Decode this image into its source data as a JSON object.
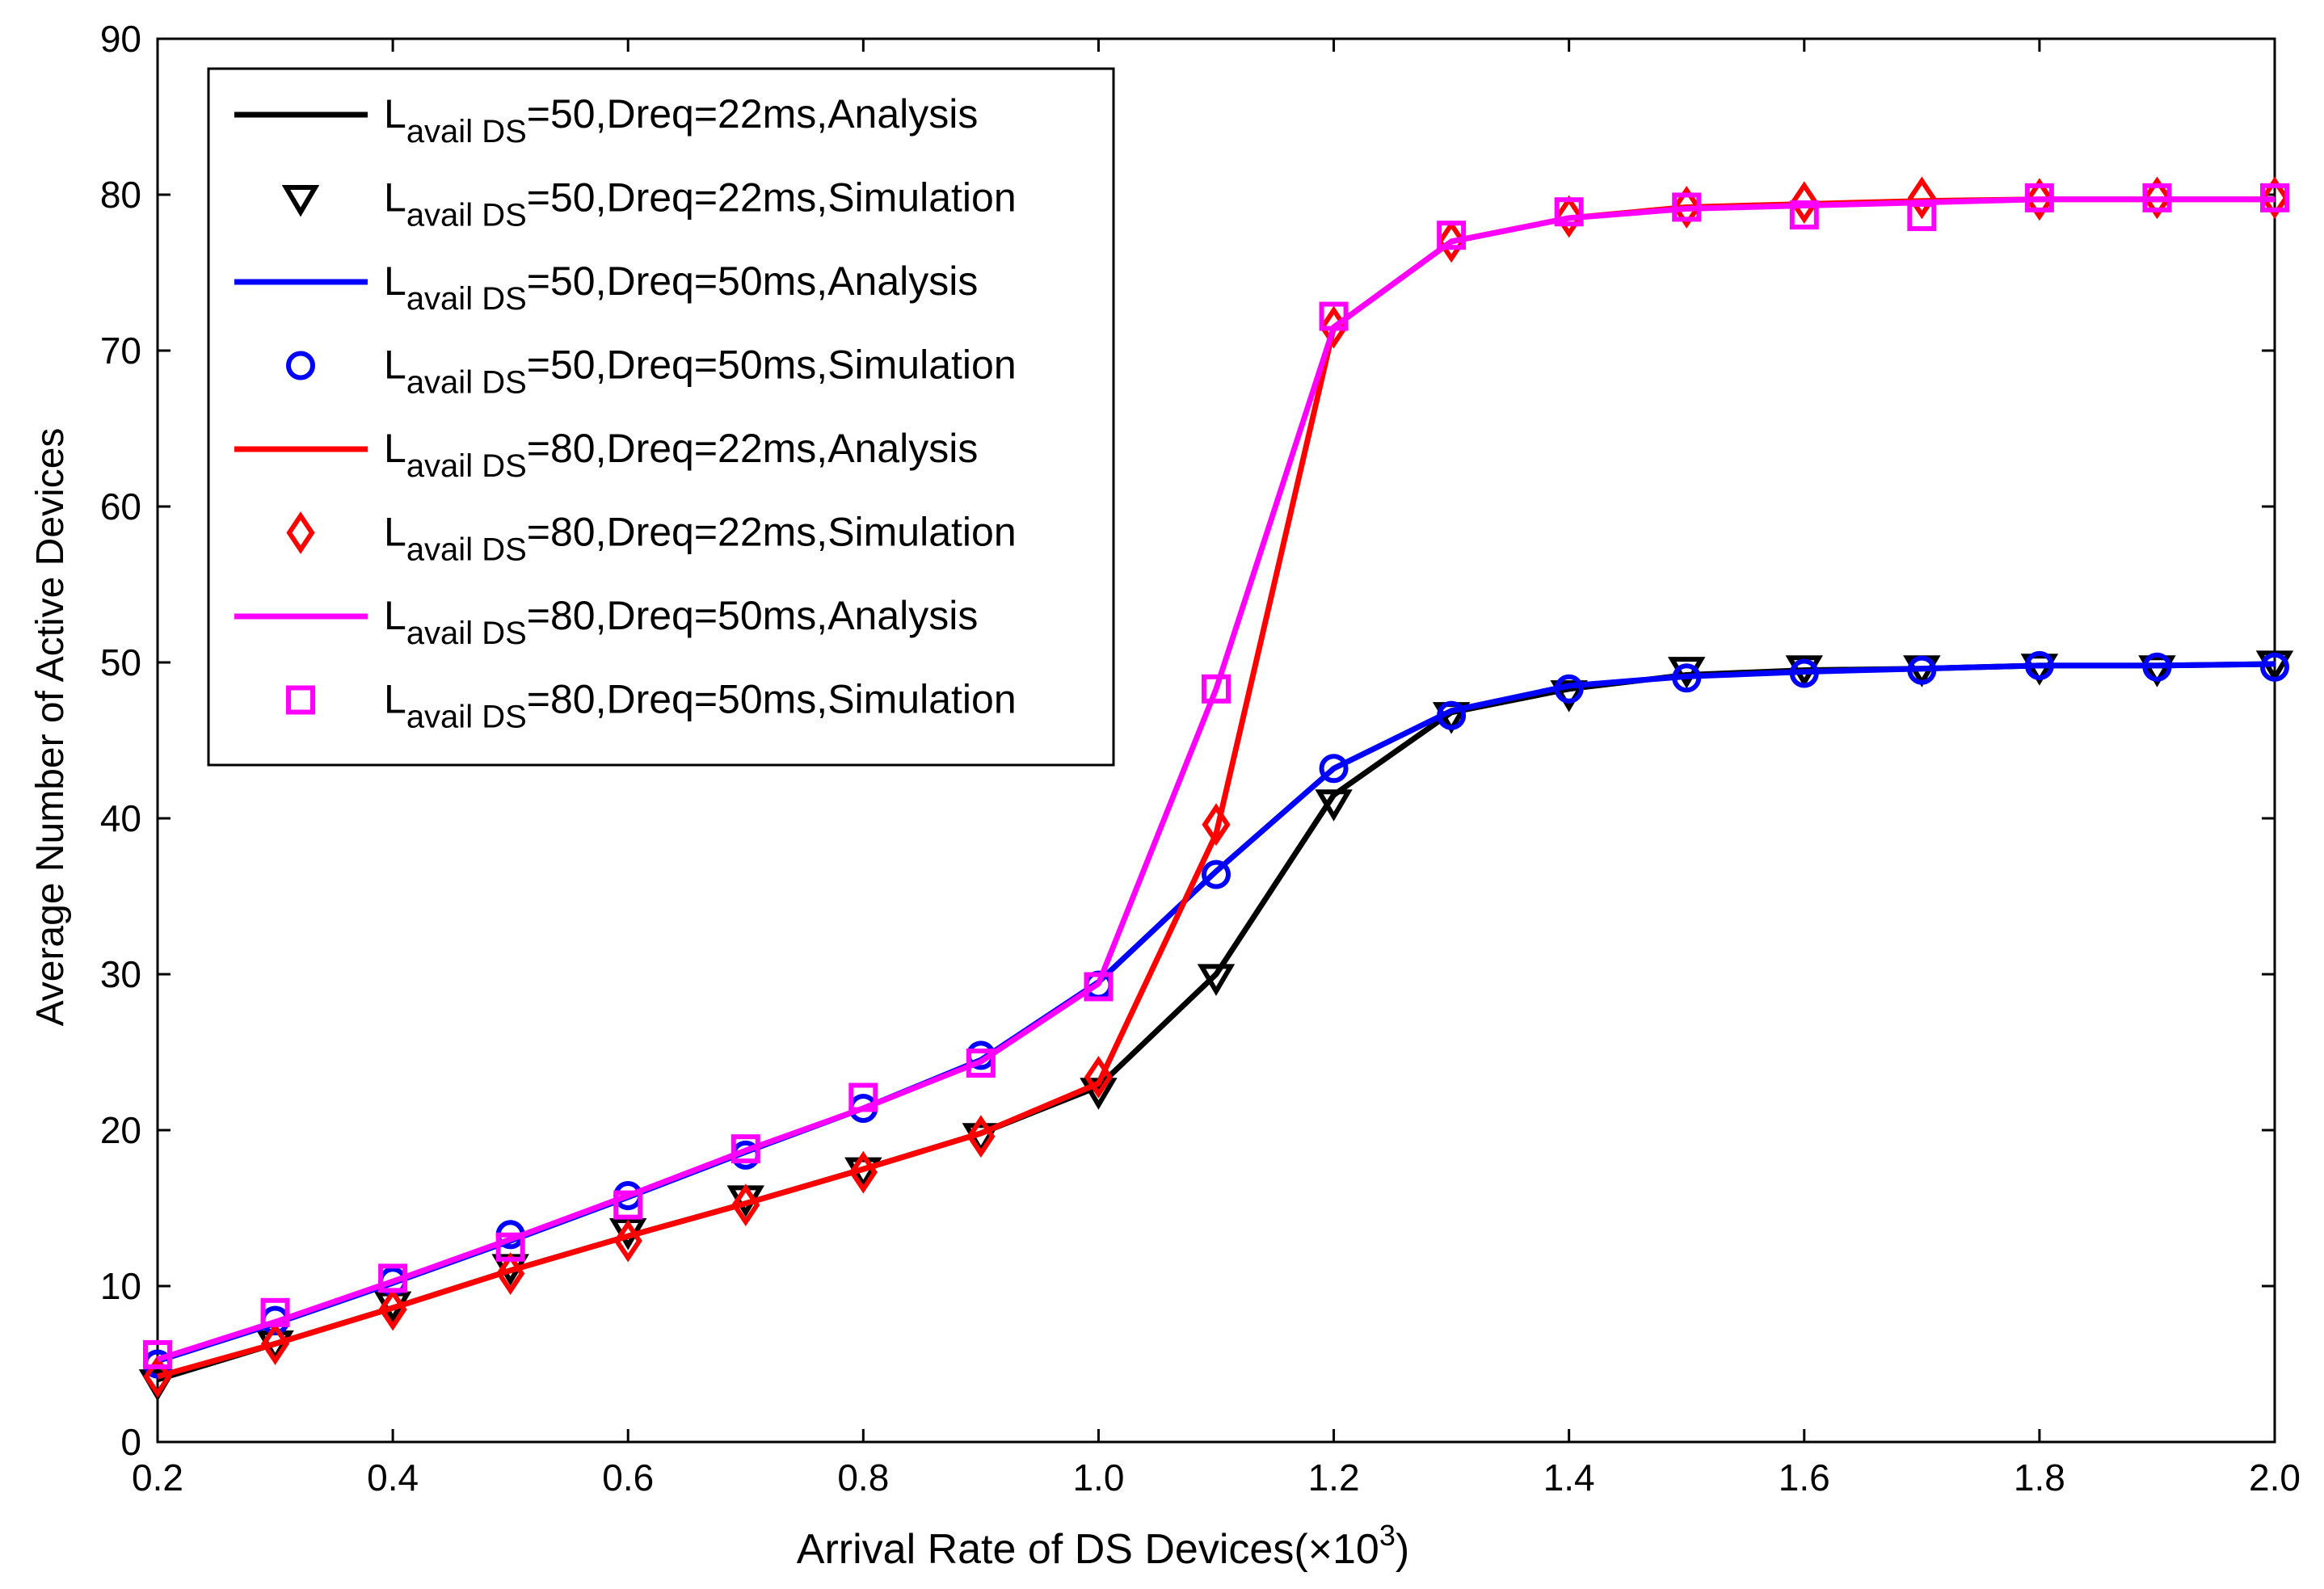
{
  "chart_data": {
    "type": "line",
    "title": "",
    "xlabel": "Arrival Rate of DS Devices(×10",
    "xlabel_sup": "3",
    "xlabel_close": ")",
    "ylabel": "Average Number of Active Devices",
    "xlim": [
      0.2,
      2.0
    ],
    "ylim": [
      0,
      90
    ],
    "x_ticks": [
      "0.2",
      "0.4",
      "0.6",
      "0.8",
      "1.0",
      "1.2",
      "1.4",
      "1.6",
      "1.8",
      "2.0"
    ],
    "y_ticks": [
      "0",
      "10",
      "20",
      "30",
      "40",
      "50",
      "60",
      "70",
      "80",
      "90"
    ],
    "x": [
      0.2,
      0.3,
      0.4,
      0.5,
      0.6,
      0.7,
      0.8,
      0.9,
      1.0,
      1.1,
      1.2,
      1.3,
      1.4,
      1.5,
      1.6,
      1.7,
      1.8,
      1.9,
      2.0
    ],
    "legend_position": "top-left",
    "series": [
      {
        "name": "L avail DS=50,Dreq=22ms,Analysis",
        "label_sub": "avail DS",
        "label_rest": "=50,Dreq=22ms,Analysis",
        "kind": "line",
        "color": "#000000",
        "values": [
          4.0,
          6.3,
          8.6,
          11.0,
          13.2,
          15.3,
          17.5,
          19.8,
          22.8,
          30.0,
          41.5,
          46.8,
          48.3,
          49.2,
          49.5,
          49.6,
          49.8,
          49.8,
          49.9
        ]
      },
      {
        "name": "L avail DS=50,Dreq=22ms,Simulation",
        "label_sub": "avail DS",
        "label_rest": "=50,Dreq=22ms,Simulation",
        "kind": "marker",
        "marker": "triangle-down",
        "color": "#000000",
        "values": [
          3.8,
          6.3,
          8.8,
          11.2,
          13.5,
          15.6,
          17.4,
          19.6,
          22.5,
          29.8,
          41.0,
          46.6,
          48.0,
          49.5,
          49.6,
          49.6,
          49.7,
          49.6,
          49.9
        ]
      },
      {
        "name": "L avail DS=50,Dreq=50ms,Analysis",
        "label_sub": "avail DS",
        "label_rest": "=50,Dreq=50ms,Analysis",
        "kind": "line",
        "color": "#0000ff",
        "values": [
          5.2,
          7.6,
          10.2,
          12.9,
          15.7,
          18.6,
          21.4,
          24.5,
          29.5,
          36.6,
          43.2,
          46.9,
          48.5,
          49.1,
          49.4,
          49.6,
          49.8,
          49.8,
          49.9
        ]
      },
      {
        "name": "L avail DS=50,Dreq=50ms,Simulation",
        "label_sub": "avail DS",
        "label_rest": "=50,Dreq=50ms,Simulation",
        "kind": "marker",
        "marker": "circle",
        "color": "#0000ff",
        "values": [
          5.0,
          7.8,
          10.3,
          13.3,
          15.8,
          18.4,
          21.4,
          24.8,
          29.3,
          36.4,
          43.2,
          46.6,
          48.3,
          49.0,
          49.3,
          49.5,
          49.8,
          49.7,
          49.7
        ]
      },
      {
        "name": "L avail DS=80,Dreq=22ms,Analysis",
        "label_sub": "avail DS",
        "label_rest": "=80,Dreq=22ms,Analysis",
        "kind": "line",
        "color": "#ff0000",
        "values": [
          4.2,
          6.3,
          8.6,
          11.0,
          13.2,
          15.3,
          17.5,
          19.8,
          23.0,
          39.0,
          71.5,
          77.0,
          78.5,
          79.2,
          79.4,
          79.6,
          79.7,
          79.7,
          79.7
        ]
      },
      {
        "name": "L avail DS=80,Dreq=22ms,Simulation",
        "label_sub": "avail DS",
        "label_rest": "=80,Dreq=22ms,Simulation",
        "kind": "marker",
        "marker": "diamond",
        "color": "#ff0000",
        "values": [
          4.2,
          6.3,
          8.5,
          10.8,
          12.9,
          15.2,
          17.3,
          19.6,
          23.4,
          39.6,
          71.5,
          77.0,
          78.6,
          79.2,
          79.5,
          79.8,
          79.7,
          79.8,
          79.8
        ]
      },
      {
        "name": "L avail DS=80,Dreq=50ms,Analysis",
        "label_sub": "avail DS",
        "label_rest": "=80,Dreq=50ms,Analysis",
        "kind": "line",
        "color": "#ff00ff",
        "values": [
          5.3,
          7.7,
          10.3,
          13.0,
          15.8,
          18.7,
          21.4,
          24.4,
          29.4,
          48.3,
          71.5,
          77.0,
          78.5,
          79.1,
          79.3,
          79.5,
          79.7,
          79.7,
          79.7
        ]
      },
      {
        "name": "L avail DS=80,Dreq=50ms,Simulation",
        "label_sub": "avail DS",
        "label_rest": "=80,Dreq=50ms,Simulation",
        "kind": "marker",
        "marker": "square",
        "color": "#ff00ff",
        "values": [
          5.6,
          8.3,
          10.5,
          12.5,
          15.2,
          18.8,
          22.1,
          24.3,
          29.2,
          48.3,
          72.2,
          77.4,
          78.9,
          79.2,
          78.7,
          78.6,
          79.8,
          79.8,
          79.8
        ]
      }
    ]
  }
}
